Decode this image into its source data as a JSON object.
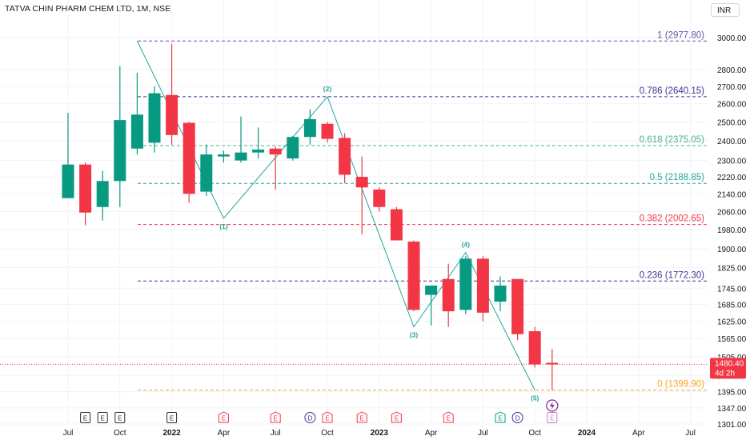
{
  "header": {
    "title": "TATVA CHIN PHARM CHEM LTD, 1M, NSE",
    "currency": "INR"
  },
  "colors": {
    "up": "#089981",
    "down": "#f23645",
    "wave": "#26a69a",
    "grid": "#f0f3fa"
  },
  "chart_data": {
    "type": "candlestick",
    "title": "TATVA CHIN PHARM CHEM LTD, 1M, NSE",
    "currency": "INR",
    "yaxis": {
      "ticks": [
        3000,
        2800,
        2700,
        2600,
        2500,
        2400,
        2300,
        2220,
        2140,
        2060,
        1980,
        1900,
        1825,
        1745,
        1685,
        1625,
        1565,
        1505,
        1445,
        1395,
        1347,
        1301
      ],
      "scale": "log",
      "range": [
        1301,
        3000
      ]
    },
    "xaxis": {
      "labels": [
        {
          "i": 0,
          "text": "Jul",
          "bold": false
        },
        {
          "i": 3,
          "text": "Oct",
          "bold": false
        },
        {
          "i": 6,
          "text": "2022",
          "bold": true
        },
        {
          "i": 9,
          "text": "Apr",
          "bold": false
        },
        {
          "i": 12,
          "text": "Jul",
          "bold": false
        },
        {
          "i": 15,
          "text": "Oct",
          "bold": false
        },
        {
          "i": 18,
          "text": "2023",
          "bold": true
        },
        {
          "i": 21,
          "text": "Apr",
          "bold": false
        },
        {
          "i": 24,
          "text": "Jul",
          "bold": false
        },
        {
          "i": 27,
          "text": "Oct",
          "bold": false
        },
        {
          "i": 30,
          "text": "2024",
          "bold": true
        },
        {
          "i": 33,
          "text": "Apr",
          "bold": false
        },
        {
          "i": 36,
          "text": "Jul",
          "bold": false
        }
      ]
    },
    "candles": [
      {
        "o": 2120,
        "h": 2550,
        "l": 2120,
        "c": 2280
      },
      {
        "o": 2280,
        "h": 2290,
        "l": 2000,
        "c": 2055
      },
      {
        "o": 2080,
        "h": 2250,
        "l": 2020,
        "c": 2200
      },
      {
        "o": 2200,
        "h": 2820,
        "l": 2080,
        "c": 2510
      },
      {
        "o": 2360,
        "h": 2780,
        "l": 2330,
        "c": 2540
      },
      {
        "o": 2390,
        "h": 2700,
        "l": 2340,
        "c": 2660
      },
      {
        "o": 2650,
        "h": 2960,
        "l": 2380,
        "c": 2430
      },
      {
        "o": 2495,
        "h": 2500,
        "l": 2100,
        "c": 2140
      },
      {
        "o": 2150,
        "h": 2380,
        "l": 2130,
        "c": 2330
      },
      {
        "o": 2320,
        "h": 2350,
        "l": 2290,
        "c": 2330
      },
      {
        "o": 2300,
        "h": 2530,
        "l": 2290,
        "c": 2340
      },
      {
        "o": 2340,
        "h": 2470,
        "l": 2310,
        "c": 2355
      },
      {
        "o": 2360,
        "h": 2370,
        "l": 2160,
        "c": 2330
      },
      {
        "o": 2310,
        "h": 2425,
        "l": 2300,
        "c": 2420
      },
      {
        "o": 2420,
        "h": 2570,
        "l": 2380,
        "c": 2515
      },
      {
        "o": 2490,
        "h": 2500,
        "l": 2390,
        "c": 2410
      },
      {
        "o": 2415,
        "h": 2440,
        "l": 2190,
        "c": 2230
      },
      {
        "o": 2220,
        "h": 2320,
        "l": 1960,
        "c": 2170
      },
      {
        "o": 2160,
        "h": 2170,
        "l": 2060,
        "c": 2080
      },
      {
        "o": 2070,
        "h": 2080,
        "l": 1935,
        "c": 1935
      },
      {
        "o": 1930,
        "h": 1935,
        "l": 1660,
        "c": 1665
      },
      {
        "o": 1720,
        "h": 1750,
        "l": 1610,
        "c": 1755
      },
      {
        "o": 1780,
        "h": 1840,
        "l": 1605,
        "c": 1660
      },
      {
        "o": 1665,
        "h": 1870,
        "l": 1650,
        "c": 1860
      },
      {
        "o": 1860,
        "h": 1870,
        "l": 1625,
        "c": 1655
      },
      {
        "o": 1695,
        "h": 1790,
        "l": 1660,
        "c": 1755
      },
      {
        "o": 1780,
        "h": 1780,
        "l": 1560,
        "c": 1580
      },
      {
        "o": 1590,
        "h": 1605,
        "l": 1470,
        "c": 1480
      },
      {
        "o": 1485,
        "h": 1530,
        "l": 1400,
        "c": 1480
      }
    ],
    "fib_levels": [
      {
        "label": "1 (2977.80)",
        "value": 2977.8,
        "color": "#6a4ca8"
      },
      {
        "label": "0.786 (2640.15)",
        "value": 2640.15,
        "color": "#3b3692"
      },
      {
        "label": "0.618 (2375.05)",
        "value": 2375.05,
        "color": "#4caf82"
      },
      {
        "label": "0.5 (2188.85)",
        "value": 2188.85,
        "color": "#26a69a"
      },
      {
        "label": "0.382 (2002.65)",
        "value": 2002.65,
        "color": "#f23645"
      },
      {
        "label": "0.236 (1772.30)",
        "value": 1772.3,
        "color": "#3b3692"
      },
      {
        "label": "0 (1399.90)",
        "value": 1399.9,
        "color": "#f5a623"
      }
    ],
    "waves": [
      {
        "i": 4,
        "value": 2977.8,
        "label": ""
      },
      {
        "i": 9,
        "value": 2030,
        "label": "(1)"
      },
      {
        "i": 15,
        "value": 2640,
        "label": "(2)"
      },
      {
        "i": 20,
        "value": 1605,
        "label": "(3)"
      },
      {
        "i": 23,
        "value": 1885,
        "label": "(4)"
      },
      {
        "i": 27,
        "value": 1400,
        "label": "(5)"
      }
    ],
    "last_price": {
      "value": 1480.4,
      "label": "1480.40",
      "countdown": "4d 2h"
    },
    "events": [
      {
        "i": 1,
        "text": "E",
        "type": "earn-past"
      },
      {
        "i": 2,
        "text": "E",
        "type": "earn-past"
      },
      {
        "i": 3,
        "text": "E",
        "type": "earn-past"
      },
      {
        "i": 6,
        "text": "E",
        "type": "earn-past"
      },
      {
        "i": 9,
        "text": "E",
        "type": "earn-red"
      },
      {
        "i": 12,
        "text": "E",
        "type": "earn-red"
      },
      {
        "i": 15,
        "text": "E",
        "type": "earn-red"
      },
      {
        "i": 14,
        "text": "D",
        "type": "dividend"
      },
      {
        "i": 17,
        "text": "E",
        "type": "earn-red"
      },
      {
        "i": 19,
        "text": "E",
        "type": "earn-red"
      },
      {
        "i": 22,
        "text": "E",
        "type": "earn-red"
      },
      {
        "i": 25,
        "text": "E",
        "type": "earn-green"
      },
      {
        "i": 26,
        "text": "D",
        "type": "dividend"
      },
      {
        "i": 28,
        "text": "E",
        "type": "earn-future"
      }
    ]
  }
}
